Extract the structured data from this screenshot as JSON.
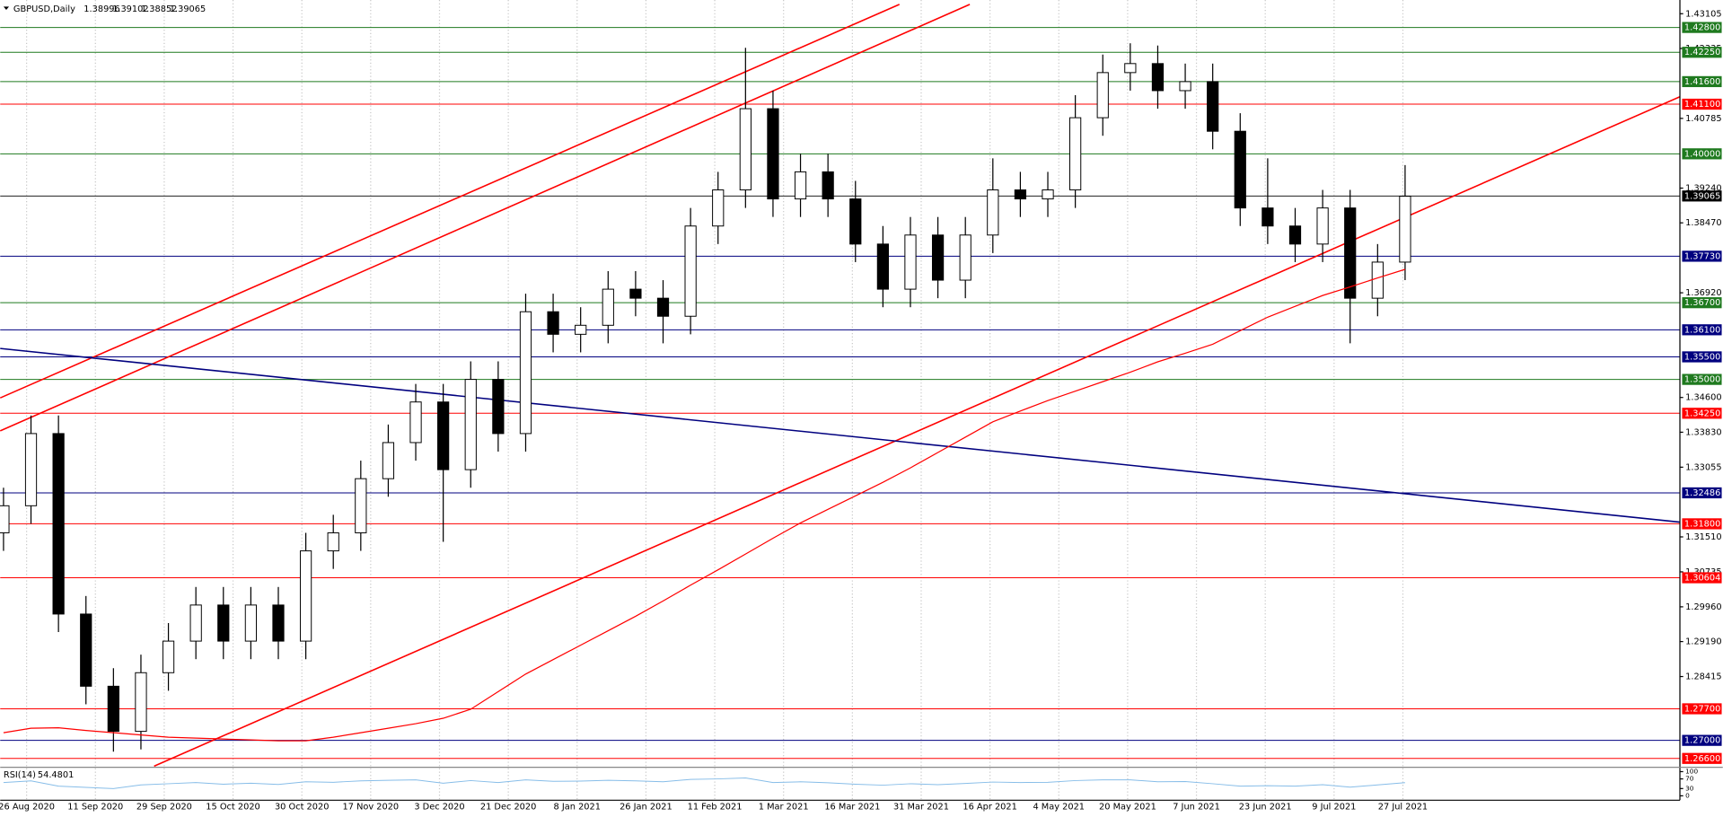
{
  "chart_data": {
    "type": "candlestick",
    "title": "GBPUSD,Daily",
    "header_values": [
      1.38996,
      1.39102,
      1.38852,
      1.39065
    ],
    "categories": [
      "26 Aug 2020",
      "11 Sep 2020",
      "29 Sep 2020",
      "15 Oct 2020",
      "30 Oct 2020",
      "17 Nov 2020",
      "3 Dec 2020",
      "21 Dec 2020",
      "8 Jan 2021",
      "26 Jan 2021",
      "11 Feb 2021",
      "1 Mar 2021",
      "16 Mar 2021",
      "31 Mar 2021",
      "16 Apr 2021",
      "4 May 2021",
      "20 May 2021",
      "7 Jun 2021",
      "23 Jun 2021",
      "9 Jul 2021",
      "27 Jul 2021"
    ],
    "open": [
      1.316,
      1.322,
      1.338,
      1.298,
      1.282,
      1.272,
      1.285,
      1.292,
      1.3,
      1.292,
      1.3,
      1.292,
      1.312,
      1.316,
      1.328,
      1.336,
      1.345,
      1.33,
      1.35,
      1.338,
      1.365,
      1.36,
      1.362,
      1.37,
      1.368,
      1.364,
      1.384,
      1.392,
      1.41,
      1.39,
      1.396,
      1.39,
      1.38,
      1.37,
      1.382,
      1.372,
      1.382,
      1.392,
      1.39,
      1.392,
      1.408,
      1.418,
      1.42,
      1.414,
      1.416,
      1.405,
      1.388,
      1.384,
      1.38,
      1.388,
      1.368,
      1.376
    ],
    "high": [
      1.326,
      1.342,
      1.342,
      1.302,
      1.286,
      1.289,
      1.296,
      1.304,
      1.304,
      1.304,
      1.304,
      1.316,
      1.32,
      1.332,
      1.34,
      1.349,
      1.349,
      1.354,
      1.354,
      1.369,
      1.369,
      1.366,
      1.374,
      1.374,
      1.372,
      1.388,
      1.396,
      1.4235,
      1.414,
      1.4,
      1.4,
      1.394,
      1.384,
      1.386,
      1.386,
      1.386,
      1.399,
      1.396,
      1.396,
      1.413,
      1.422,
      1.4245,
      1.424,
      1.42,
      1.42,
      1.409,
      1.399,
      1.388,
      1.392,
      1.392,
      1.38,
      1.3975
    ],
    "low": [
      1.312,
      1.318,
      1.294,
      1.278,
      1.2675,
      1.268,
      1.281,
      1.288,
      1.288,
      1.288,
      1.288,
      1.288,
      1.308,
      1.312,
      1.324,
      1.332,
      1.314,
      1.326,
      1.334,
      1.334,
      1.356,
      1.356,
      1.358,
      1.364,
      1.358,
      1.36,
      1.38,
      1.388,
      1.386,
      1.386,
      1.386,
      1.376,
      1.366,
      1.366,
      1.368,
      1.368,
      1.378,
      1.386,
      1.386,
      1.388,
      1.404,
      1.414,
      1.41,
      1.41,
      1.401,
      1.384,
      1.38,
      1.376,
      1.376,
      1.358,
      1.364,
      1.372
    ],
    "close": [
      1.322,
      1.338,
      1.298,
      1.282,
      1.272,
      1.285,
      1.292,
      1.3,
      1.292,
      1.3,
      1.292,
      1.312,
      1.316,
      1.328,
      1.336,
      1.345,
      1.33,
      1.35,
      1.338,
      1.365,
      1.36,
      1.362,
      1.37,
      1.368,
      1.364,
      1.384,
      1.392,
      1.41,
      1.39,
      1.396,
      1.39,
      1.38,
      1.37,
      1.382,
      1.372,
      1.382,
      1.392,
      1.39,
      1.392,
      1.408,
      1.418,
      1.42,
      1.414,
      1.416,
      1.405,
      1.388,
      1.384,
      1.38,
      1.388,
      1.368,
      1.376,
      1.3906
    ],
    "ma": {
      "color": "#ff0000",
      "values": [
        1.2717,
        1.2727,
        1.2728,
        1.2722,
        1.2717,
        1.2712,
        1.2707,
        1.2705,
        1.2703,
        1.2701,
        1.2699,
        1.2699,
        1.2707,
        1.2717,
        1.2727,
        1.2737,
        1.2749,
        1.2769,
        1.2808,
        1.2847,
        1.2879,
        1.2911,
        1.2943,
        1.2975,
        1.3009,
        1.3044,
        1.3078,
        1.3113,
        1.3148,
        1.3182,
        1.3212,
        1.3242,
        1.3272,
        1.3304,
        1.3338,
        1.3372,
        1.3406,
        1.343,
        1.3453,
        1.3474,
        1.3495,
        1.3516,
        1.3539,
        1.3558,
        1.3578,
        1.3608,
        1.3638,
        1.3662,
        1.3686,
        1.3705,
        1.3725,
        1.3744
      ]
    },
    "ylim": [
      1.26429,
      1.43409
    ],
    "yticks": [
      1.43105,
      1.42335,
      1.40785,
      {
        "value": 1.3924,
        "label": "1.39240"
      },
      {
        "value": 1.3847,
        "label": "1.38470"
      },
      {
        "value": 1.3692,
        "label": "1.36920"
      },
      {
        "value": 1.346,
        "label": "1.34600"
      },
      {
        "value": 1.3383,
        "label": "1.33830"
      },
      1.33055,
      {
        "value": 1.3151,
        "label": "1.31510"
      },
      1.30735,
      {
        "value": 1.2996,
        "label": "1.29960"
      },
      {
        "value": 1.2919,
        "label": "1.29190"
      },
      1.28415
    ],
    "levels": [
      {
        "value": 1.428,
        "label": "1.42800",
        "color": "#1f7a1f"
      },
      {
        "value": 1.4225,
        "label": "1.42250",
        "color": "#1f7a1f"
      },
      {
        "value": 1.416,
        "label": "1.41600",
        "color": "#1f7a1f"
      },
      {
        "value": 1.411,
        "label": "1.41100",
        "color": "#ff0000"
      },
      {
        "value": 1.4,
        "label": "1.40000",
        "color": "#1f7a1f"
      },
      {
        "value": 1.39065,
        "label": "1.39065",
        "color": "#000000"
      },
      {
        "value": 1.3773,
        "label": "1.37730",
        "color": "#00007f"
      },
      {
        "value": 1.367,
        "label": "1.36700",
        "color": "#1f7a1f"
      },
      {
        "value": 1.361,
        "label": "1.36100",
        "color": "#00007f"
      },
      {
        "value": 1.355,
        "label": "1.35500",
        "color": "#00007f"
      },
      {
        "value": 1.35,
        "label": "1.35000",
        "color": "#1f7a1f"
      },
      {
        "value": 1.3425,
        "label": "1.34250",
        "color": "#ff0000"
      },
      {
        "value": 1.32486,
        "label": "1.32486",
        "color": "#00007f"
      },
      {
        "value": 1.318,
        "label": "1.31800",
        "color": "#ff0000"
      },
      {
        "value": 1.30604,
        "label": "1.30604",
        "color": "#ff0000"
      },
      {
        "value": 1.277,
        "label": "1.27700",
        "color": "#ff0000"
      },
      {
        "value": 1.27,
        "label": "1.27000",
        "color": "#00007f"
      },
      {
        "value": 1.266,
        "label": "1.26600",
        "color": "#ff0000"
      }
    ],
    "rsi": {
      "name": "RSI(14)",
      "current": 54.4801,
      "color": "#87bde8",
      "ylim": [
        0,
        100
      ],
      "yticks": [
        100,
        70,
        30,
        0
      ],
      "values": [
        55,
        62,
        40,
        35,
        30,
        45,
        50,
        55,
        48,
        52,
        47,
        58,
        56,
        62,
        64,
        66,
        52,
        63,
        55,
        66,
        60,
        61,
        64,
        62,
        58,
        68,
        70,
        74,
        55,
        58,
        54,
        48,
        44,
        50,
        46,
        51,
        57,
        55,
        56,
        63,
        66,
        66,
        58,
        59,
        50,
        40,
        42,
        40,
        46,
        36,
        45,
        54.4801
      ]
    }
  }
}
